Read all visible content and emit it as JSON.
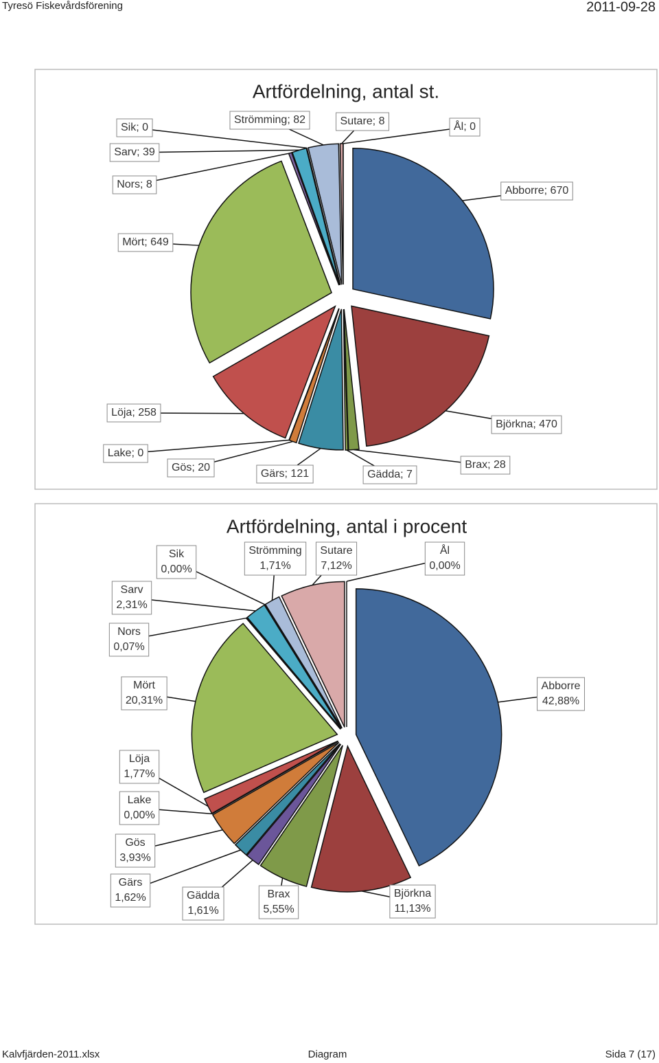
{
  "header": {
    "left": "Tyresö Fiskevårdsförening",
    "right": "2011-09-28"
  },
  "footer": {
    "left": "Kalvfjärden-2011.xlsx",
    "center": "Diagram",
    "right": "Sida 7 (17)"
  },
  "chart_data": [
    {
      "type": "pie",
      "title": "Artfördelning, antal st.",
      "values": [
        670,
        470,
        28,
        7,
        121,
        20,
        0,
        258,
        649,
        8,
        39,
        0,
        82,
        8,
        0
      ],
      "value_labels": [
        "Abborre; 670",
        "Björkna; 470",
        "Brax; 28",
        "Gädda; 7",
        "Gärs; 121",
        "Gös; 20",
        "Lake; 0",
        "Löja; 258",
        "Mört; 649",
        "Nors; 8",
        "Sarv; 39",
        "Sik; 0",
        "Strömming; 82",
        "Sutare; 8",
        "Ål; 0"
      ],
      "colors": [
        "#41699b",
        "#9c403e",
        "#7f9a49",
        "#8aa24b",
        "#3a8ca4",
        "#d07c3a",
        "#6b569a",
        "#c0504d",
        "#9bbb59",
        "#8064a2",
        "#4bacc6",
        "#f79646",
        "#a9bcd9",
        "#d9a9a9",
        "#2c4d75"
      ]
    },
    {
      "type": "pie",
      "title": "Artfördelning, antal i procent",
      "categories": [
        "Abborre",
        "Björkna",
        "Brax",
        "Gädda",
        "Gärs",
        "Gös",
        "Lake",
        "Löja",
        "Mört",
        "Nors",
        "Sarv",
        "Sik",
        "Strömming",
        "Sutare",
        "Ål"
      ],
      "values": [
        42.88,
        11.13,
        5.55,
        1.61,
        1.62,
        3.93,
        0.0,
        1.77,
        20.31,
        0.07,
        2.31,
        0.0,
        1.71,
        7.12,
        0.0
      ],
      "value_labels": [
        "42,88%",
        "11,13%",
        "5,55%",
        "1,61%",
        "1,62%",
        "3,93%",
        "0,00%",
        "1,77%",
        "20,31%",
        "0,07%",
        "2,31%",
        "0,00%",
        "1,71%",
        "7,12%",
        "0,00%"
      ],
      "colors": [
        "#41699b",
        "#9c403e",
        "#7f9a49",
        "#6b569a",
        "#3a8ca4",
        "#d07c3a",
        "#8064a2",
        "#c0504d",
        "#9bbb59",
        "#8064a2",
        "#4bacc6",
        "#f79646",
        "#a9bcd9",
        "#d9a9a9",
        "#2c4d75"
      ]
    }
  ]
}
